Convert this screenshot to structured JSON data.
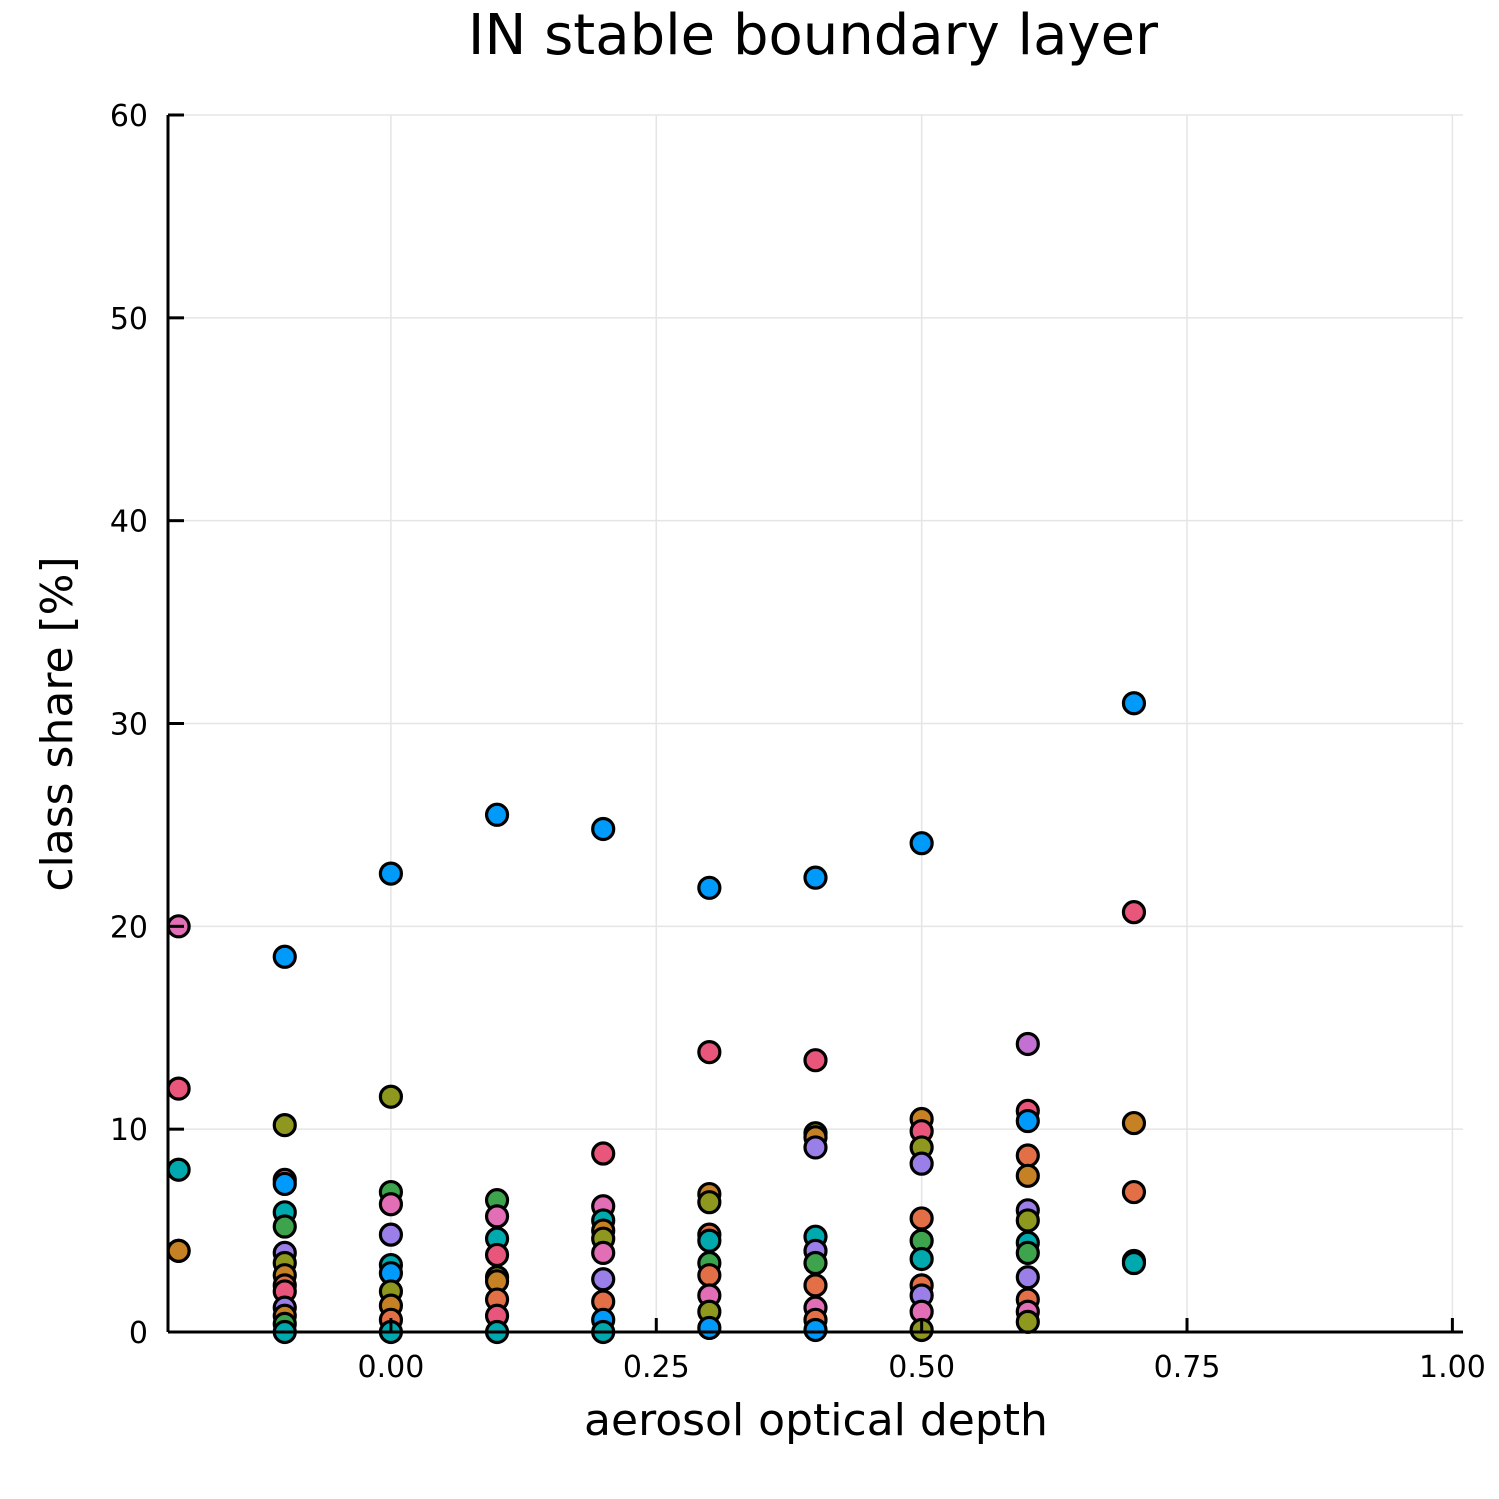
{
  "chart_data": {
    "type": "scatter",
    "title": "IN stable boundary layer",
    "xlabel": "aerosol optical depth",
    "ylabel": "class share [%]",
    "xlim": [
      -0.21,
      1.01
    ],
    "ylim": [
      0,
      60
    ],
    "x_ticks": [
      {
        "value": 0.0,
        "label": "0.00"
      },
      {
        "value": 0.25,
        "label": "0.25"
      },
      {
        "value": 0.5,
        "label": "0.50"
      },
      {
        "value": 0.75,
        "label": "0.75"
      },
      {
        "value": 1.0,
        "label": "1.00"
      }
    ],
    "y_ticks": [
      {
        "value": 0,
        "label": "0"
      },
      {
        "value": 10,
        "label": "10"
      },
      {
        "value": 20,
        "label": "20"
      },
      {
        "value": 30,
        "label": "30"
      },
      {
        "value": 40,
        "label": "40"
      },
      {
        "value": 50,
        "label": "50"
      },
      {
        "value": 60,
        "label": "60"
      }
    ],
    "grid": true,
    "legend": "none",
    "points": [
      {
        "x": -0.2,
        "y": 20.0,
        "color": "#e26fb5"
      },
      {
        "x": -0.2,
        "y": 12.0,
        "color": "#e8577b"
      },
      {
        "x": -0.2,
        "y": 8.0,
        "color": "#00a9ad"
      },
      {
        "x": -0.2,
        "y": 4.0,
        "color": "#e26f46"
      },
      {
        "x": -0.2,
        "y": 4.0,
        "color": "#c68125"
      },
      {
        "x": -0.1,
        "y": 18.5,
        "color": "#009afa"
      },
      {
        "x": -0.1,
        "y": 10.2,
        "color": "#8e971e"
      },
      {
        "x": -0.1,
        "y": 7.5,
        "color": "#e8577b"
      },
      {
        "x": -0.1,
        "y": 7.3,
        "color": "#009afa"
      },
      {
        "x": -0.1,
        "y": 5.9,
        "color": "#00a9ad"
      },
      {
        "x": -0.1,
        "y": 5.2,
        "color": "#3da44d"
      },
      {
        "x": -0.1,
        "y": 3.9,
        "color": "#9b7fe9"
      },
      {
        "x": -0.1,
        "y": 3.4,
        "color": "#8e971e"
      },
      {
        "x": -0.1,
        "y": 2.8,
        "color": "#c68125"
      },
      {
        "x": -0.1,
        "y": 2.3,
        "color": "#e26f46"
      },
      {
        "x": -0.1,
        "y": 2.0,
        "color": "#e8577b"
      },
      {
        "x": -0.1,
        "y": 1.2,
        "color": "#9b7fe9"
      },
      {
        "x": -0.1,
        "y": 0.8,
        "color": "#c68125"
      },
      {
        "x": -0.1,
        "y": 0.4,
        "color": "#3da44d"
      },
      {
        "x": -0.1,
        "y": 0.0,
        "color": "#00a9ad"
      },
      {
        "x": 0.0,
        "y": 22.6,
        "color": "#009afa"
      },
      {
        "x": 0.0,
        "y": 11.6,
        "color": "#8e971e"
      },
      {
        "x": 0.0,
        "y": 6.9,
        "color": "#3da44d"
      },
      {
        "x": 0.0,
        "y": 6.3,
        "color": "#e26fb5"
      },
      {
        "x": 0.0,
        "y": 4.8,
        "color": "#9b7fe9"
      },
      {
        "x": 0.0,
        "y": 3.3,
        "color": "#00a9ad"
      },
      {
        "x": 0.0,
        "y": 2.9,
        "color": "#009afa"
      },
      {
        "x": 0.0,
        "y": 2.0,
        "color": "#8e971e"
      },
      {
        "x": 0.0,
        "y": 1.3,
        "color": "#c68125"
      },
      {
        "x": 0.0,
        "y": 0.6,
        "color": "#e26f46"
      },
      {
        "x": 0.0,
        "y": 0.0,
        "color": "#00a9ad"
      },
      {
        "x": 0.1,
        "y": 25.5,
        "color": "#009afa"
      },
      {
        "x": 0.1,
        "y": 6.5,
        "color": "#3da44d"
      },
      {
        "x": 0.1,
        "y": 5.7,
        "color": "#e26fb5"
      },
      {
        "x": 0.1,
        "y": 4.6,
        "color": "#00a9ad"
      },
      {
        "x": 0.1,
        "y": 3.8,
        "color": "#e8577b"
      },
      {
        "x": 0.1,
        "y": 2.7,
        "color": "#8e971e"
      },
      {
        "x": 0.1,
        "y": 2.5,
        "color": "#c68125"
      },
      {
        "x": 0.1,
        "y": 1.6,
        "color": "#e26f46"
      },
      {
        "x": 0.1,
        "y": 0.8,
        "color": "#e8577b"
      },
      {
        "x": 0.1,
        "y": 0.0,
        "color": "#00a9ad"
      },
      {
        "x": 0.2,
        "y": 24.8,
        "color": "#009afa"
      },
      {
        "x": 0.2,
        "y": 8.8,
        "color": "#e8577b"
      },
      {
        "x": 0.2,
        "y": 6.2,
        "color": "#e26fb5"
      },
      {
        "x": 0.2,
        "y": 5.5,
        "color": "#00a9ad"
      },
      {
        "x": 0.2,
        "y": 5.0,
        "color": "#c68125"
      },
      {
        "x": 0.2,
        "y": 4.6,
        "color": "#8e971e"
      },
      {
        "x": 0.2,
        "y": 3.9,
        "color": "#e26fb5"
      },
      {
        "x": 0.2,
        "y": 2.6,
        "color": "#9b7fe9"
      },
      {
        "x": 0.2,
        "y": 1.5,
        "color": "#e26f46"
      },
      {
        "x": 0.2,
        "y": 0.6,
        "color": "#009afa"
      },
      {
        "x": 0.2,
        "y": 0.0,
        "color": "#00a9ad"
      },
      {
        "x": 0.3,
        "y": 21.9,
        "color": "#009afa"
      },
      {
        "x": 0.3,
        "y": 13.8,
        "color": "#e8577b"
      },
      {
        "x": 0.3,
        "y": 6.8,
        "color": "#c68125"
      },
      {
        "x": 0.3,
        "y": 6.4,
        "color": "#8e971e"
      },
      {
        "x": 0.3,
        "y": 4.8,
        "color": "#e26f46"
      },
      {
        "x": 0.3,
        "y": 4.5,
        "color": "#00a9ad"
      },
      {
        "x": 0.3,
        "y": 3.4,
        "color": "#3da44d"
      },
      {
        "x": 0.3,
        "y": 2.8,
        "color": "#e26f46"
      },
      {
        "x": 0.3,
        "y": 1.8,
        "color": "#e26fb5"
      },
      {
        "x": 0.3,
        "y": 1.0,
        "color": "#8e971e"
      },
      {
        "x": 0.3,
        "y": 0.2,
        "color": "#009afa"
      },
      {
        "x": 0.4,
        "y": 22.4,
        "color": "#009afa"
      },
      {
        "x": 0.4,
        "y": 13.4,
        "color": "#e8577b"
      },
      {
        "x": 0.4,
        "y": 9.8,
        "color": "#8e971e"
      },
      {
        "x": 0.4,
        "y": 9.6,
        "color": "#c68125"
      },
      {
        "x": 0.4,
        "y": 9.1,
        "color": "#9b7fe9"
      },
      {
        "x": 0.4,
        "y": 4.7,
        "color": "#00a9ad"
      },
      {
        "x": 0.4,
        "y": 4.0,
        "color": "#9b7fe9"
      },
      {
        "x": 0.4,
        "y": 3.4,
        "color": "#3da44d"
      },
      {
        "x": 0.4,
        "y": 2.3,
        "color": "#e26f46"
      },
      {
        "x": 0.4,
        "y": 1.2,
        "color": "#e26fb5"
      },
      {
        "x": 0.4,
        "y": 0.6,
        "color": "#e26f46"
      },
      {
        "x": 0.4,
        "y": 0.1,
        "color": "#009afa"
      },
      {
        "x": 0.5,
        "y": 24.1,
        "color": "#009afa"
      },
      {
        "x": 0.5,
        "y": 10.5,
        "color": "#c68125"
      },
      {
        "x": 0.5,
        "y": 9.9,
        "color": "#e8577b"
      },
      {
        "x": 0.5,
        "y": 9.1,
        "color": "#8e971e"
      },
      {
        "x": 0.5,
        "y": 8.3,
        "color": "#9b7fe9"
      },
      {
        "x": 0.5,
        "y": 5.6,
        "color": "#e26f46"
      },
      {
        "x": 0.5,
        "y": 4.5,
        "color": "#3da44d"
      },
      {
        "x": 0.5,
        "y": 3.6,
        "color": "#00a9ad"
      },
      {
        "x": 0.5,
        "y": 2.3,
        "color": "#e26f46"
      },
      {
        "x": 0.5,
        "y": 1.8,
        "color": "#9b7fe9"
      },
      {
        "x": 0.5,
        "y": 1.0,
        "color": "#e26fb5"
      },
      {
        "x": 0.5,
        "y": 0.1,
        "color": "#8e971e"
      },
      {
        "x": 0.6,
        "y": 14.2,
        "color": "#c271d2"
      },
      {
        "x": 0.6,
        "y": 10.9,
        "color": "#e8577b"
      },
      {
        "x": 0.6,
        "y": 10.4,
        "color": "#009afa"
      },
      {
        "x": 0.6,
        "y": 8.7,
        "color": "#e26f46"
      },
      {
        "x": 0.6,
        "y": 7.7,
        "color": "#c68125"
      },
      {
        "x": 0.6,
        "y": 6.0,
        "color": "#9b7fe9"
      },
      {
        "x": 0.6,
        "y": 5.5,
        "color": "#8e971e"
      },
      {
        "x": 0.6,
        "y": 4.4,
        "color": "#00a9ad"
      },
      {
        "x": 0.6,
        "y": 3.9,
        "color": "#3da44d"
      },
      {
        "x": 0.6,
        "y": 2.7,
        "color": "#9b7fe9"
      },
      {
        "x": 0.6,
        "y": 1.6,
        "color": "#e26f46"
      },
      {
        "x": 0.6,
        "y": 1.0,
        "color": "#e26fb5"
      },
      {
        "x": 0.6,
        "y": 0.5,
        "color": "#8e971e"
      },
      {
        "x": 0.7,
        "y": 31.0,
        "color": "#009afa"
      },
      {
        "x": 0.7,
        "y": 20.7,
        "color": "#e8577b"
      },
      {
        "x": 0.7,
        "y": 10.3,
        "color": "#c68125"
      },
      {
        "x": 0.7,
        "y": 6.9,
        "color": "#e26f46"
      },
      {
        "x": 0.7,
        "y": 3.5,
        "color": "#3da44d"
      },
      {
        "x": 0.7,
        "y": 3.4,
        "color": "#00a9ad"
      }
    ]
  }
}
